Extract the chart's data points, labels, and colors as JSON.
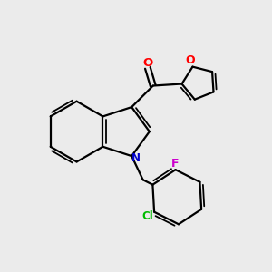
{
  "background_color": "#ebebeb",
  "bond_color": "#000000",
  "atom_colors": {
    "O": "#ff0000",
    "N": "#0000cc",
    "Cl": "#00bb00",
    "F": "#cc00cc"
  },
  "figsize": [
    3.0,
    3.0
  ],
  "dpi": 100
}
